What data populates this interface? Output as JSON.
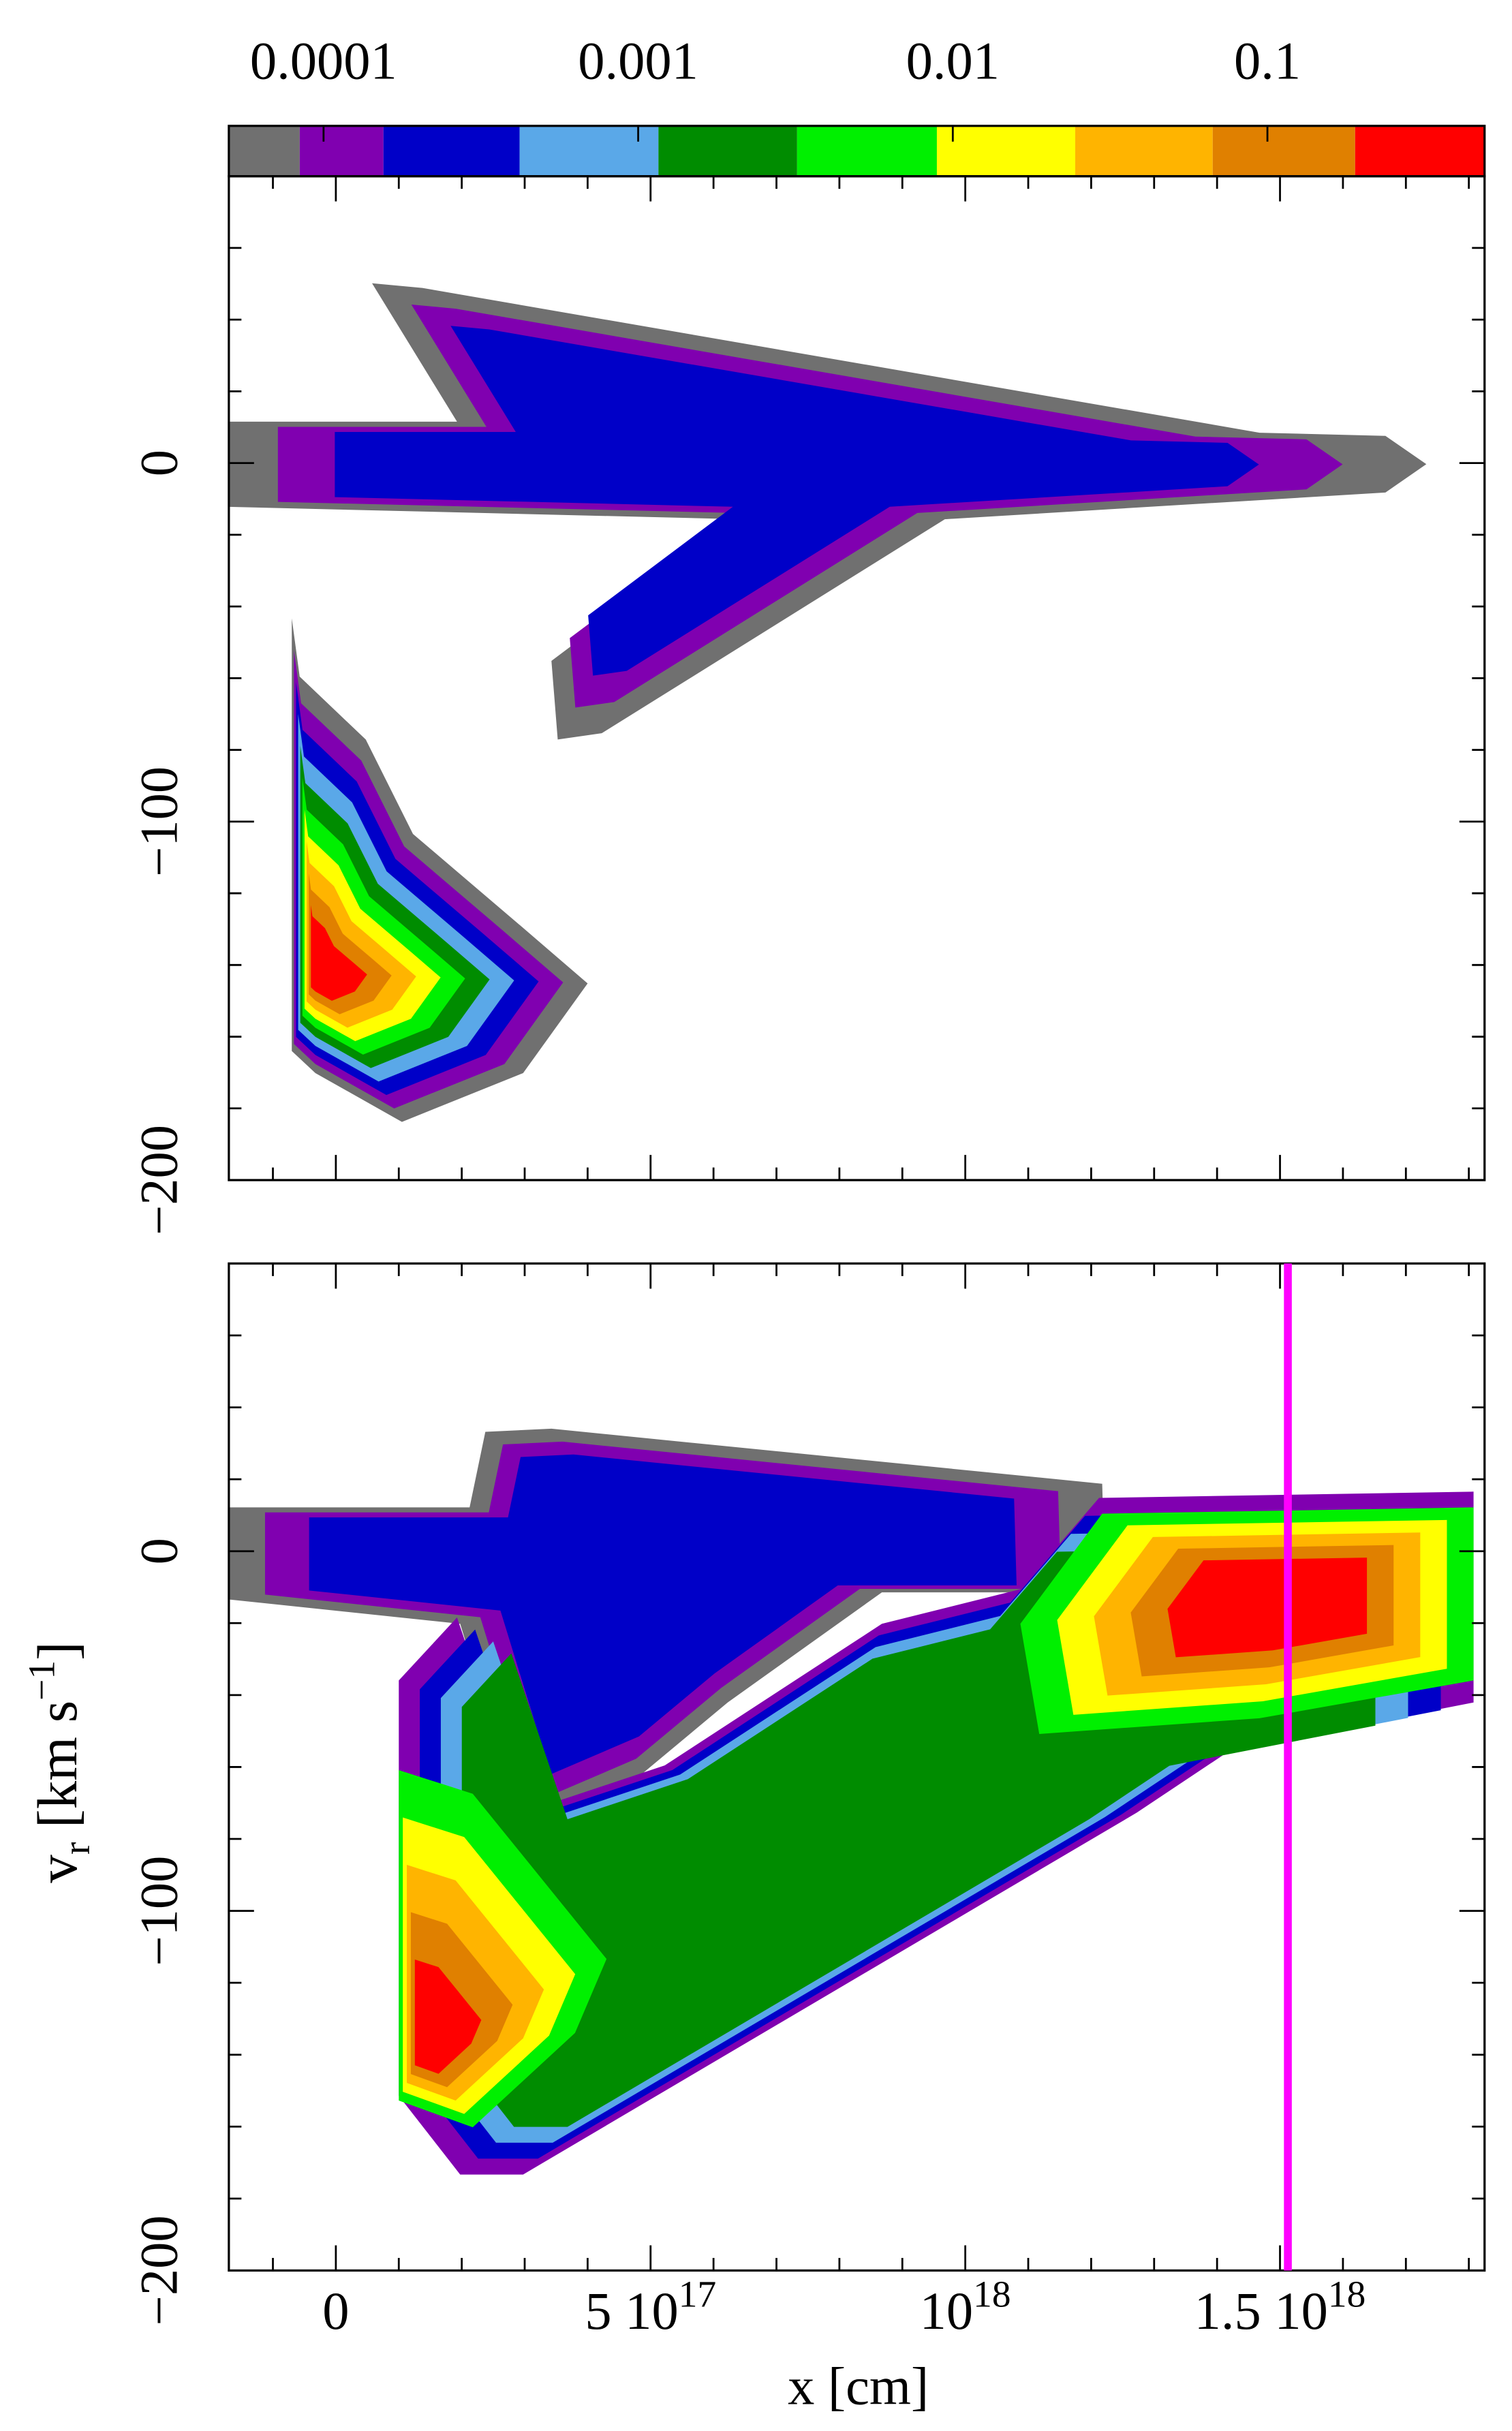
{
  "chart_data": [
    {
      "type": "colorbar",
      "log": true,
      "xlim": [
        5e-05,
        0.49
      ],
      "levels": [
        8.4e-05,
        0.000155,
        0.00042,
        0.00116,
        0.0032,
        0.0089,
        0.0245,
        0.067,
        0.19
      ],
      "colors": [
        "#707070",
        "#8000b0",
        "#0000c8",
        "#5aa8e8",
        "#008c00",
        "#00f000",
        "#ffff00",
        "#ffb400",
        "#e08000",
        "#ff0000"
      ],
      "xticks": [
        0.0001,
        0.001,
        0.01,
        0.1
      ]
    },
    {
      "type": "contour",
      "xlim": [
        -170000000000000000,
        1825000000000000000
      ],
      "ylim": [
        -200,
        80
      ],
      "xtick_labels": false,
      "xticks": [
        0,
        500000000000000000,
        1000000000000000000,
        1500000000000000000
      ],
      "xminorticks": [
        -100000000000000000,
        100000000000000000,
        200000000000000000,
        300000000000000000,
        400000000000000000,
        600000000000000000,
        700000000000000000,
        800000000000000000,
        900000000000000000,
        1100000000000000000,
        1200000000000000000,
        1300000000000000000,
        1400000000000000000,
        1600000000000000000,
        1700000000000000000,
        1800000000000000000
      ],
      "yticks": [
        0,
        {
          "value": -100,
          "label": "−100"
        },
        {
          "value": -200,
          "label": "−200"
        }
      ],
      "yminorticks": [
        60,
        40,
        20,
        -20,
        -40,
        -60,
        -80,
        -120,
        -140,
        -160,
        -180
      ]
    },
    {
      "type": "contour",
      "xlim": [
        -170000000000000000,
        1825000000000000000
      ],
      "ylim": [
        -200,
        80
      ],
      "xtick_labels": true,
      "xticks": [
        {
          "value": 0,
          "label": "0"
        },
        {
          "value": 500000000000000000,
          "label": "5 10",
          "exponent": "17"
        },
        {
          "value": 1000000000000000000,
          "label": "10",
          "exponent": "18"
        },
        {
          "value": 1500000000000000000,
          "label": "1.5 10",
          "exponent": "18"
        }
      ],
      "xminorticks": [
        -100000000000000000,
        100000000000000000,
        200000000000000000,
        300000000000000000,
        400000000000000000,
        600000000000000000,
        700000000000000000,
        800000000000000000,
        900000000000000000,
        1100000000000000000,
        1200000000000000000,
        1300000000000000000,
        1400000000000000000,
        1600000000000000000,
        1700000000000000000,
        1800000000000000000
      ],
      "yticks": [
        0,
        {
          "value": -100,
          "label": "−100"
        },
        {
          "value": -200,
          "label": "−200"
        }
      ],
      "yminorticks": [
        60,
        40,
        20,
        -20,
        -40,
        -60,
        -80,
        -120,
        -140,
        -160,
        -180
      ],
      "xlabel": "x [cm]",
      "ylabel": {
        "text": "v",
        "sub": "r",
        "unit": " [km s",
        "sup": "−1",
        "close": "]"
      },
      "vline": {
        "x": 1512500000000000000,
        "color": "#ff00ff"
      }
    }
  ]
}
